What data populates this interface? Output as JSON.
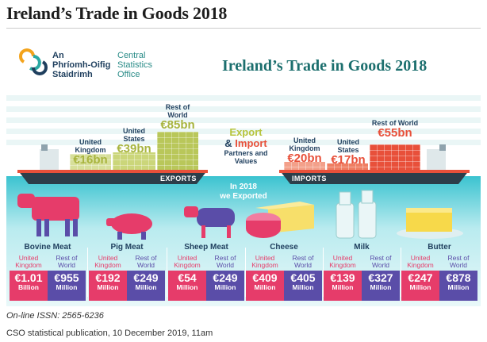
{
  "page": {
    "title": "Ireland’s Trade in Goods 2018",
    "issn": "On-line ISSN: 2565-6236",
    "publication": "CSO statistical publication, 10 December 2019, 11am"
  },
  "infographic": {
    "logo_irish": [
      "An",
      "Phríomh-Oifig",
      "Staidrimh"
    ],
    "logo_english": [
      "Central",
      "Statistics",
      "Office"
    ],
    "title": "Ireland’s Trade in Goods 2018",
    "center": {
      "export": "Export",
      "amp": "&",
      "import": "Import",
      "sub": "Partners and Values"
    },
    "exports_tag": "EXPORTS",
    "imports_tag": "IMPORTS",
    "in2018": "In 2018",
    "we_exported": "we Exported",
    "exports": [
      {
        "region": "United Kingdom",
        "value": "€16bn"
      },
      {
        "region": "United States",
        "value": "€39bn"
      },
      {
        "region": "Rest of World",
        "value": "€85bn"
      }
    ],
    "imports": [
      {
        "region": "United Kingdom",
        "value": "€20bn"
      },
      {
        "region": "United States",
        "value": "€17bn"
      },
      {
        "region": "Rest of World",
        "value": "€55bn"
      }
    ],
    "products": [
      {
        "name": "Bovine Meat",
        "uk_label": "United Kingdom",
        "row_label": "Rest of World",
        "uk_value": "€1.01",
        "uk_unit": "Billion",
        "row_value": "€955",
        "row_unit": "Million"
      },
      {
        "name": "Pig Meat",
        "uk_label": "United Kingdom",
        "row_label": "Rest of World",
        "uk_value": "€192",
        "uk_unit": "Million",
        "row_value": "€249",
        "row_unit": "Million"
      },
      {
        "name": "Sheep Meat",
        "uk_label": "United Kingdom",
        "row_label": "Rest of World",
        "uk_value": "€54",
        "uk_unit": "Million",
        "row_value": "€249",
        "row_unit": "Million"
      },
      {
        "name": "Cheese",
        "uk_label": "United Kingdom",
        "row_label": "Rest of World",
        "uk_value": "€409",
        "uk_unit": "Million",
        "row_value": "€405",
        "row_unit": "Million"
      },
      {
        "name": "Milk",
        "uk_label": "United Kingdom",
        "row_label": "Rest of World",
        "uk_value": "€139",
        "uk_unit": "Million",
        "row_value": "€327",
        "row_unit": "Million"
      },
      {
        "name": "Butter",
        "uk_label": "United Kingdom",
        "row_label": "Rest of World",
        "uk_value": "€247",
        "uk_unit": "Million",
        "row_value": "€878",
        "row_unit": "Million"
      }
    ]
  },
  "colors": {
    "teal": "#1c6f6e",
    "navy": "#1f3f5e",
    "pink": "#e63c6a",
    "purple": "#5a4da8",
    "export_green": "#b9c75a",
    "import_red": "#e8503a",
    "orange": "#f08a1c"
  }
}
